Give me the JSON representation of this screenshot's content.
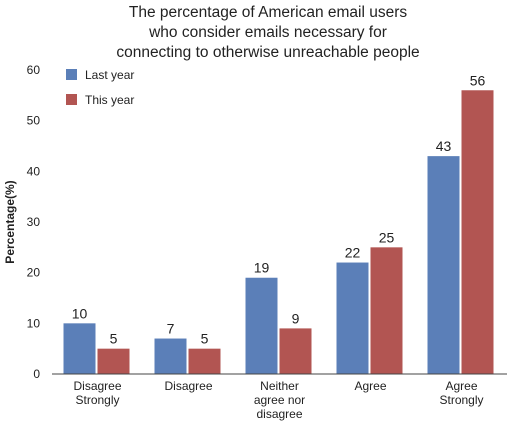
{
  "chart_data": {
    "type": "bar",
    "title": [
      "The percentage of American email users",
      "who consider emails necessary for",
      "connecting to otherwise unreachable people"
    ],
    "ylabel": "Percentage(%)",
    "xlabel": "",
    "ylim": [
      0,
      60
    ],
    "yticks": [
      "0",
      "10",
      "20",
      "30",
      "40",
      "50",
      "60"
    ],
    "categories": [
      [
        "Disagree",
        "Strongly"
      ],
      [
        "Disagree"
      ],
      [
        "Neither",
        "agree nor",
        "disagree"
      ],
      [
        "Agree"
      ],
      [
        "Agree",
        "Strongly"
      ]
    ],
    "series": [
      {
        "name": "Last year",
        "color": "#5b7fb8",
        "values": [
          10,
          7,
          19,
          22,
          43
        ]
      },
      {
        "name": "This year",
        "color": "#b25552",
        "values": [
          5,
          5,
          9,
          25,
          56
        ]
      }
    ],
    "legend_position": "top-left",
    "grid": false,
    "data_labels": true
  }
}
